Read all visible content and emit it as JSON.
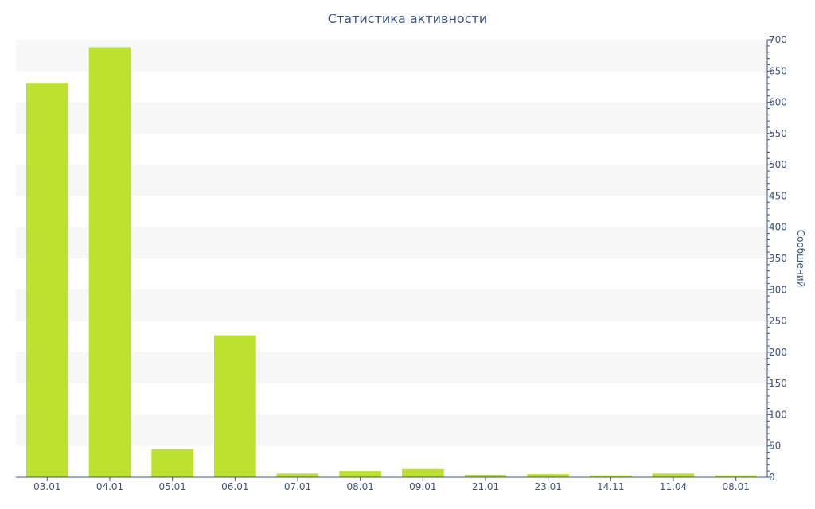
{
  "chart_data": {
    "type": "bar",
    "title": "Статистика активности",
    "xlabel": "",
    "ylabel": "Сообщений",
    "categories": [
      "03.01",
      "04.01",
      "05.01",
      "06.01",
      "07.01",
      "08.01",
      "09.01",
      "21.01",
      "23.01",
      "14.11",
      "11.04",
      "08.01"
    ],
    "values": [
      631,
      688,
      45,
      227,
      6,
      10,
      13,
      4,
      5,
      3,
      6,
      3
    ],
    "ylim": [
      0,
      700
    ],
    "yticks": [
      "0",
      "50",
      "100",
      "150",
      "200",
      "250",
      "300",
      "350",
      "400",
      "450",
      "500",
      "550",
      "600",
      "650",
      "700"
    ],
    "y_axis_position": "right",
    "grid": "alternating horizontal bands",
    "legend": "none",
    "colors": {
      "bar": "#bce22f",
      "axis": "#3a5383",
      "band": "#f7f7f7"
    }
  }
}
